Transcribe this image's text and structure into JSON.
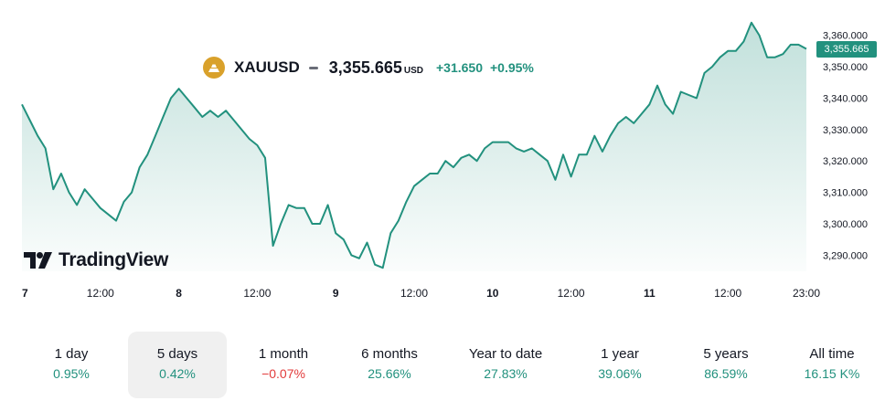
{
  "header": {
    "symbol": "XAUUSD",
    "price": "3,355.665",
    "unit": "USD",
    "change": "+31.650",
    "change_pct": "+0.95%"
  },
  "logo": {
    "text": "TradingView"
  },
  "last_price_tag": "3,355.665",
  "colors": {
    "line": "#22917e",
    "positive": "#22917e",
    "negative": "#e23b3b",
    "brand_icon": "#d9a12b"
  },
  "chart_data": {
    "type": "area",
    "y_ticks": [
      "3,360.000",
      "3,350.000",
      "3,340.000",
      "3,330.000",
      "3,320.000",
      "3,310.000",
      "3,300.000",
      "3,290.000"
    ],
    "x_ticks": [
      "7",
      "12:00",
      "8",
      "12:00",
      "9",
      "12:00",
      "10",
      "12:00",
      "11",
      "12:00",
      "23:00"
    ],
    "ylim": [
      3285,
      3365
    ],
    "last_value": 3355.665,
    "x": [
      0,
      0.5,
      1,
      1.5,
      2,
      2.5,
      3,
      3.5,
      4,
      4.5,
      5,
      5.5,
      6,
      6.5,
      7,
      7.5,
      8,
      8.5,
      9,
      9.5,
      10,
      10.5,
      11,
      11.5,
      12,
      12.5,
      13,
      13.5,
      14,
      14.5,
      15,
      15.5,
      16,
      16.5,
      17,
      17.5,
      18,
      18.5,
      19,
      19.5,
      20,
      20.5,
      21,
      21.5,
      22,
      22.5,
      23,
      23.5,
      24,
      24.5,
      25,
      25.5,
      26,
      26.5,
      27,
      27.5,
      28,
      28.5,
      29,
      29.5,
      30,
      30.5,
      31,
      31.5,
      32,
      32.5,
      33,
      33.5,
      34,
      34.5,
      35,
      35.5,
      36,
      36.5,
      37,
      37.5,
      38,
      38.5,
      39,
      39.5,
      40,
      40.5,
      41,
      41.5,
      42,
      42.5,
      43,
      43.5,
      44,
      44.5,
      45,
      45.5,
      46,
      46.5,
      47,
      47.5,
      48,
      48.5,
      49,
      49.5,
      50
    ],
    "values": [
      3338,
      3333,
      3328,
      3324,
      3311,
      3316,
      3310,
      3306,
      3311,
      3308,
      3305,
      3303,
      3301,
      3307,
      3310,
      3318,
      3322,
      3328,
      3334,
      3340,
      3343,
      3340,
      3337,
      3334,
      3336,
      3334,
      3336,
      3333,
      3330,
      3327,
      3325,
      3321,
      3293,
      3300,
      3306,
      3305,
      3305,
      3300,
      3300,
      3306,
      3297,
      3295,
      3290,
      3289,
      3294,
      3287,
      3286,
      3297,
      3301,
      3307,
      3312,
      3314,
      3316,
      3316,
      3320,
      3318,
      3321,
      3322,
      3320,
      3324,
      3326,
      3326,
      3326,
      3324,
      3323,
      3324,
      3322,
      3320,
      3314,
      3322,
      3315,
      3322,
      3322,
      3328,
      3323,
      3328,
      3332,
      3334,
      3332,
      3335,
      3338,
      3344,
      3338,
      3335,
      3342,
      3341,
      3340,
      3348,
      3350,
      3353,
      3355,
      3355,
      3358,
      3364,
      3360,
      3353,
      3353,
      3354,
      3357,
      3357,
      3355.665
    ]
  },
  "periods": [
    {
      "label": "1 day",
      "value": "0.95%",
      "trend": "pos"
    },
    {
      "label": "5 days",
      "value": "0.42%",
      "trend": "pos"
    },
    {
      "label": "1 month",
      "value": "−0.07%",
      "trend": "neg"
    },
    {
      "label": "6 months",
      "value": "25.66%",
      "trend": "pos"
    },
    {
      "label": "Year to date",
      "value": "27.83%",
      "trend": "pos"
    },
    {
      "label": "1 year",
      "value": "39.06%",
      "trend": "pos"
    },
    {
      "label": "5 years",
      "value": "86.59%",
      "trend": "pos"
    },
    {
      "label": "All time",
      "value": "16.15 K%",
      "trend": "pos"
    }
  ],
  "active_period": "5 days"
}
